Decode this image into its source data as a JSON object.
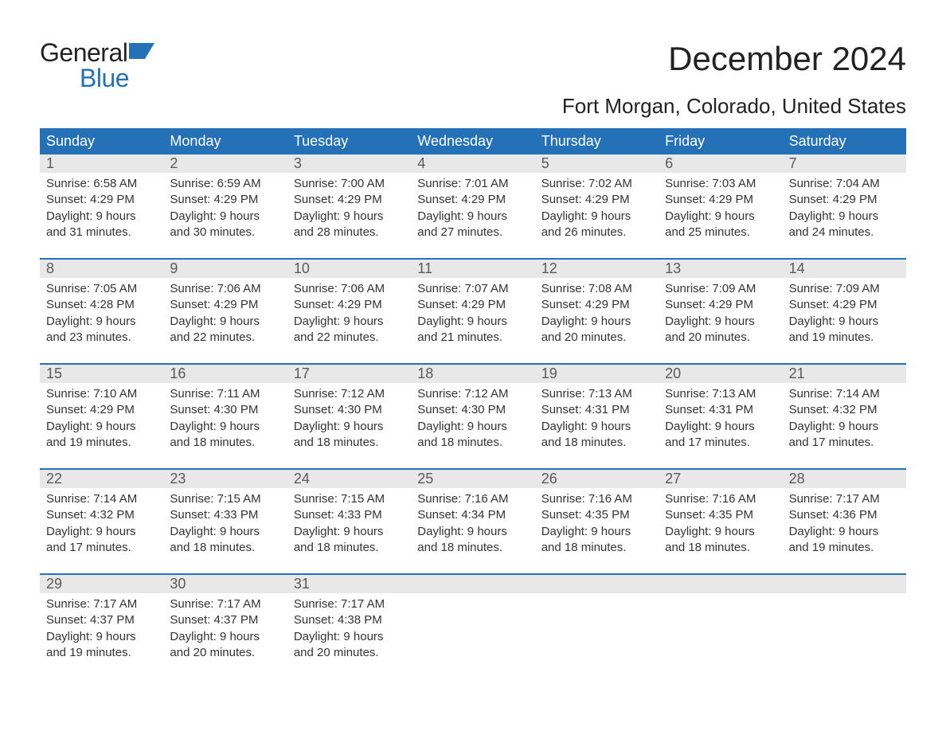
{
  "logo": {
    "word1": "General",
    "word2": "Blue",
    "text_color": "#222222",
    "accent_color": "#2471b8"
  },
  "title": "December 2024",
  "location": "Fort Morgan, Colorado, United States",
  "colors": {
    "header_bg": "#2471b8",
    "header_text": "#ffffff",
    "daynum_bg": "#e8e8e8",
    "daynum_text": "#5a5a5a",
    "body_text": "#333333",
    "week_divider": "#2471b8",
    "page_bg": "#ffffff"
  },
  "typography": {
    "title_fontsize": 42,
    "location_fontsize": 26,
    "weekday_fontsize": 18,
    "daynum_fontsize": 18,
    "cell_fontsize": 15,
    "logo_fontsize": 32
  },
  "weekdays": [
    "Sunday",
    "Monday",
    "Tuesday",
    "Wednesday",
    "Thursday",
    "Friday",
    "Saturday"
  ],
  "weeks": [
    [
      {
        "n": "1",
        "sr": "Sunrise: 6:58 AM",
        "ss": "Sunset: 4:29 PM",
        "d1": "Daylight: 9 hours",
        "d2": "and 31 minutes."
      },
      {
        "n": "2",
        "sr": "Sunrise: 6:59 AM",
        "ss": "Sunset: 4:29 PM",
        "d1": "Daylight: 9 hours",
        "d2": "and 30 minutes."
      },
      {
        "n": "3",
        "sr": "Sunrise: 7:00 AM",
        "ss": "Sunset: 4:29 PM",
        "d1": "Daylight: 9 hours",
        "d2": "and 28 minutes."
      },
      {
        "n": "4",
        "sr": "Sunrise: 7:01 AM",
        "ss": "Sunset: 4:29 PM",
        "d1": "Daylight: 9 hours",
        "d2": "and 27 minutes."
      },
      {
        "n": "5",
        "sr": "Sunrise: 7:02 AM",
        "ss": "Sunset: 4:29 PM",
        "d1": "Daylight: 9 hours",
        "d2": "and 26 minutes."
      },
      {
        "n": "6",
        "sr": "Sunrise: 7:03 AM",
        "ss": "Sunset: 4:29 PM",
        "d1": "Daylight: 9 hours",
        "d2": "and 25 minutes."
      },
      {
        "n": "7",
        "sr": "Sunrise: 7:04 AM",
        "ss": "Sunset: 4:29 PM",
        "d1": "Daylight: 9 hours",
        "d2": "and 24 minutes."
      }
    ],
    [
      {
        "n": "8",
        "sr": "Sunrise: 7:05 AM",
        "ss": "Sunset: 4:28 PM",
        "d1": "Daylight: 9 hours",
        "d2": "and 23 minutes."
      },
      {
        "n": "9",
        "sr": "Sunrise: 7:06 AM",
        "ss": "Sunset: 4:29 PM",
        "d1": "Daylight: 9 hours",
        "d2": "and 22 minutes."
      },
      {
        "n": "10",
        "sr": "Sunrise: 7:06 AM",
        "ss": "Sunset: 4:29 PM",
        "d1": "Daylight: 9 hours",
        "d2": "and 22 minutes."
      },
      {
        "n": "11",
        "sr": "Sunrise: 7:07 AM",
        "ss": "Sunset: 4:29 PM",
        "d1": "Daylight: 9 hours",
        "d2": "and 21 minutes."
      },
      {
        "n": "12",
        "sr": "Sunrise: 7:08 AM",
        "ss": "Sunset: 4:29 PM",
        "d1": "Daylight: 9 hours",
        "d2": "and 20 minutes."
      },
      {
        "n": "13",
        "sr": "Sunrise: 7:09 AM",
        "ss": "Sunset: 4:29 PM",
        "d1": "Daylight: 9 hours",
        "d2": "and 20 minutes."
      },
      {
        "n": "14",
        "sr": "Sunrise: 7:09 AM",
        "ss": "Sunset: 4:29 PM",
        "d1": "Daylight: 9 hours",
        "d2": "and 19 minutes."
      }
    ],
    [
      {
        "n": "15",
        "sr": "Sunrise: 7:10 AM",
        "ss": "Sunset: 4:29 PM",
        "d1": "Daylight: 9 hours",
        "d2": "and 19 minutes."
      },
      {
        "n": "16",
        "sr": "Sunrise: 7:11 AM",
        "ss": "Sunset: 4:30 PM",
        "d1": "Daylight: 9 hours",
        "d2": "and 18 minutes."
      },
      {
        "n": "17",
        "sr": "Sunrise: 7:12 AM",
        "ss": "Sunset: 4:30 PM",
        "d1": "Daylight: 9 hours",
        "d2": "and 18 minutes."
      },
      {
        "n": "18",
        "sr": "Sunrise: 7:12 AM",
        "ss": "Sunset: 4:30 PM",
        "d1": "Daylight: 9 hours",
        "d2": "and 18 minutes."
      },
      {
        "n": "19",
        "sr": "Sunrise: 7:13 AM",
        "ss": "Sunset: 4:31 PM",
        "d1": "Daylight: 9 hours",
        "d2": "and 18 minutes."
      },
      {
        "n": "20",
        "sr": "Sunrise: 7:13 AM",
        "ss": "Sunset: 4:31 PM",
        "d1": "Daylight: 9 hours",
        "d2": "and 17 minutes."
      },
      {
        "n": "21",
        "sr": "Sunrise: 7:14 AM",
        "ss": "Sunset: 4:32 PM",
        "d1": "Daylight: 9 hours",
        "d2": "and 17 minutes."
      }
    ],
    [
      {
        "n": "22",
        "sr": "Sunrise: 7:14 AM",
        "ss": "Sunset: 4:32 PM",
        "d1": "Daylight: 9 hours",
        "d2": "and 17 minutes."
      },
      {
        "n": "23",
        "sr": "Sunrise: 7:15 AM",
        "ss": "Sunset: 4:33 PM",
        "d1": "Daylight: 9 hours",
        "d2": "and 18 minutes."
      },
      {
        "n": "24",
        "sr": "Sunrise: 7:15 AM",
        "ss": "Sunset: 4:33 PM",
        "d1": "Daylight: 9 hours",
        "d2": "and 18 minutes."
      },
      {
        "n": "25",
        "sr": "Sunrise: 7:16 AM",
        "ss": "Sunset: 4:34 PM",
        "d1": "Daylight: 9 hours",
        "d2": "and 18 minutes."
      },
      {
        "n": "26",
        "sr": "Sunrise: 7:16 AM",
        "ss": "Sunset: 4:35 PM",
        "d1": "Daylight: 9 hours",
        "d2": "and 18 minutes."
      },
      {
        "n": "27",
        "sr": "Sunrise: 7:16 AM",
        "ss": "Sunset: 4:35 PM",
        "d1": "Daylight: 9 hours",
        "d2": "and 18 minutes."
      },
      {
        "n": "28",
        "sr": "Sunrise: 7:17 AM",
        "ss": "Sunset: 4:36 PM",
        "d1": "Daylight: 9 hours",
        "d2": "and 19 minutes."
      }
    ],
    [
      {
        "n": "29",
        "sr": "Sunrise: 7:17 AM",
        "ss": "Sunset: 4:37 PM",
        "d1": "Daylight: 9 hours",
        "d2": "and 19 minutes."
      },
      {
        "n": "30",
        "sr": "Sunrise: 7:17 AM",
        "ss": "Sunset: 4:37 PM",
        "d1": "Daylight: 9 hours",
        "d2": "and 20 minutes."
      },
      {
        "n": "31",
        "sr": "Sunrise: 7:17 AM",
        "ss": "Sunset: 4:38 PM",
        "d1": "Daylight: 9 hours",
        "d2": "and 20 minutes."
      },
      null,
      null,
      null,
      null
    ]
  ]
}
